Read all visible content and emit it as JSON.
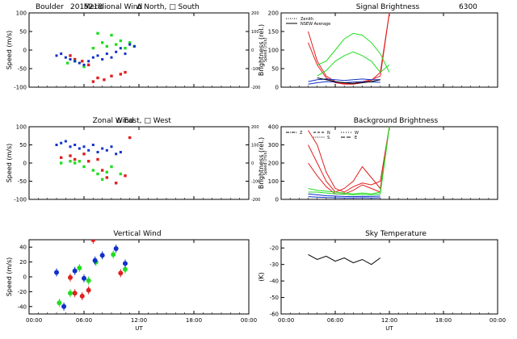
{
  "header": {
    "station": "Boulder",
    "date_code": "2015218",
    "wavelength": "6300"
  },
  "colors": {
    "red": "#e02020",
    "green": "#22dd22",
    "blue": "#1030c8",
    "black": "#000000"
  },
  "chart_data": [
    {
      "id": "meridional",
      "type": "scatter",
      "title": "Meridional Wind",
      "legend_text": "Δ North, □ South",
      "ylabel": "Speed (m/s)",
      "y2label": "Speed (m/s)",
      "xlim": [
        0,
        24
      ],
      "ylim": [
        -100,
        100
      ],
      "y2lim": [
        -200,
        200
      ],
      "xticks": [
        0,
        6,
        12,
        18,
        24
      ],
      "xtick_labels": [],
      "yticks": [
        -100,
        -50,
        0,
        50,
        100
      ],
      "ytick_labels": [
        "-100",
        "-50",
        "0",
        "50",
        "100"
      ],
      "y2ticks": [
        -200,
        -100,
        0,
        100,
        200
      ],
      "y2tick_labels": [
        "-200",
        "-100",
        "0",
        "100",
        "200"
      ],
      "series": [
        {
          "color": "red",
          "marker": "square",
          "x": [
            4.5,
            5.0,
            5.8,
            6.5,
            7.0,
            7.5,
            8.2,
            9.0,
            10.0,
            10.5
          ],
          "y": [
            -15,
            -25,
            -30,
            -40,
            -85,
            -75,
            -80,
            -70,
            -65,
            -60
          ]
        },
        {
          "color": "green",
          "marker": "square",
          "x": [
            4.2,
            5.0,
            6.0,
            7.0,
            7.5,
            8.0,
            8.5,
            9.0,
            9.5,
            10.0,
            10.5,
            11.0,
            11.5
          ],
          "y": [
            -35,
            -30,
            -45,
            5,
            45,
            20,
            10,
            40,
            15,
            25,
            5,
            20,
            10
          ]
        },
        {
          "color": "blue",
          "marker": "square",
          "x": [
            3.0,
            3.5,
            4.0,
            4.5,
            5.0,
            5.5,
            6.0,
            6.5,
            7.0,
            7.5,
            8.0,
            8.5,
            9.0,
            9.5,
            10.0,
            10.5,
            11.0,
            11.5
          ],
          "y": [
            -15,
            -10,
            -20,
            -25,
            -30,
            -35,
            -40,
            -30,
            -20,
            -15,
            -25,
            -10,
            -20,
            -5,
            5,
            -10,
            15,
            10
          ]
        }
      ]
    },
    {
      "id": "signal",
      "type": "line",
      "title": "Signal Brightness",
      "ylabel": "Brightness (rel.)",
      "xlim": [
        0,
        24
      ],
      "ylim": [
        0,
        200
      ],
      "xticks": [
        0,
        6,
        12,
        18,
        24
      ],
      "xtick_labels": [],
      "yticks": [
        0,
        50,
        100,
        150,
        200
      ],
      "ytick_labels": [
        "0",
        "50",
        "100",
        "150",
        "200"
      ],
      "legend": [
        "Zenith",
        "NSEW Average"
      ],
      "series": [
        {
          "color": "red",
          "x": [
            3,
            4,
            5,
            6,
            7,
            8,
            9,
            10,
            11,
            12
          ],
          "y": [
            150,
            70,
            30,
            15,
            10,
            10,
            15,
            20,
            30,
            200
          ]
        },
        {
          "color": "red",
          "x": [
            3,
            4,
            5,
            6,
            7,
            8,
            9,
            10,
            11,
            12
          ],
          "y": [
            120,
            60,
            25,
            12,
            8,
            8,
            12,
            18,
            40,
            200
          ]
        },
        {
          "color": "green",
          "x": [
            4,
            5,
            6,
            7,
            8,
            9,
            10,
            11,
            12
          ],
          "y": [
            60,
            70,
            100,
            130,
            145,
            140,
            120,
            90,
            40
          ]
        },
        {
          "color": "green",
          "x": [
            4,
            5,
            6,
            7,
            8,
            9,
            10,
            11,
            12
          ],
          "y": [
            30,
            45,
            70,
            85,
            95,
            85,
            70,
            40,
            60
          ]
        },
        {
          "color": "blue",
          "x": [
            3,
            4,
            5,
            6,
            7,
            8,
            9,
            10,
            11
          ],
          "y": [
            15,
            20,
            22,
            20,
            18,
            20,
            22,
            20,
            20
          ]
        },
        {
          "color": "blue",
          "x": [
            3,
            4,
            5,
            6,
            7,
            8,
            9,
            10,
            11
          ],
          "y": [
            8,
            12,
            15,
            14,
            12,
            14,
            15,
            14,
            13
          ]
        },
        {
          "color": "black",
          "x": [
            4,
            5,
            6,
            7,
            8,
            9,
            10,
            11
          ],
          "y": [
            25,
            20,
            15,
            12,
            10,
            12,
            15,
            20
          ]
        }
      ]
    },
    {
      "id": "zonal",
      "type": "scatter",
      "title": "Zonal Wind",
      "legend_text": "Δ East, □ West",
      "ylabel": "Speed (m/s)",
      "y2label": "Speed (m/s)",
      "xlim": [
        0,
        24
      ],
      "ylim": [
        -100,
        100
      ],
      "y2lim": [
        -200,
        200
      ],
      "xticks": [
        0,
        6,
        12,
        18,
        24
      ],
      "xtick_labels": [],
      "yticks": [
        -100,
        -50,
        0,
        50,
        100
      ],
      "ytick_labels": [
        "-100",
        "-50",
        "0",
        "50",
        "100"
      ],
      "y2ticks": [
        -200,
        -100,
        0,
        100,
        200
      ],
      "y2tick_labels": [
        "-200",
        "-100",
        "0",
        "100",
        "200"
      ],
      "series": [
        {
          "color": "red",
          "x": [
            3.5,
            4.5,
            5.0,
            6.0,
            6.5,
            7.5,
            8.0,
            8.5,
            9.5,
            10.5,
            11.0
          ],
          "y": [
            15,
            20,
            10,
            25,
            5,
            10,
            -20,
            -40,
            -55,
            -35,
            70
          ]
        },
        {
          "color": "green",
          "x": [
            3.5,
            4.5,
            5.0,
            5.5,
            6.0,
            7.0,
            7.5,
            8.0,
            8.5,
            9.0,
            10.0
          ],
          "y": [
            0,
            5,
            0,
            5,
            -10,
            -20,
            -30,
            -45,
            -25,
            -10,
            -30
          ]
        },
        {
          "color": "blue",
          "x": [
            3.0,
            3.5,
            4.0,
            4.5,
            5.0,
            5.5,
            6.0,
            6.5,
            7.0,
            7.5,
            8.0,
            8.5,
            9.0,
            9.5,
            10.0
          ],
          "y": [
            50,
            55,
            60,
            45,
            50,
            40,
            45,
            35,
            50,
            30,
            40,
            35,
            45,
            25,
            30
          ]
        }
      ]
    },
    {
      "id": "background",
      "type": "line",
      "title": "Background Brightness",
      "ylabel": "Brightness (rel.)",
      "xlim": [
        0,
        24
      ],
      "ylim": [
        0,
        400
      ],
      "xticks": [
        0,
        6,
        12,
        18,
        24
      ],
      "xtick_labels": [],
      "yticks": [
        0,
        100,
        200,
        300,
        400
      ],
      "ytick_labels": [
        "0",
        "100",
        "200",
        "300",
        "400"
      ],
      "legend": [
        "Z",
        "N",
        "S",
        "W",
        "E"
      ],
      "series": [
        {
          "color": "red",
          "x": [
            3,
            4,
            5,
            6,
            7,
            8,
            9,
            10,
            11,
            12
          ],
          "y": [
            380,
            300,
            150,
            60,
            40,
            70,
            90,
            80,
            100,
            400
          ]
        },
        {
          "color": "red",
          "x": [
            3,
            4,
            5,
            6,
            7,
            8,
            9,
            10,
            11,
            12
          ],
          "y": [
            300,
            200,
            100,
            40,
            60,
            100,
            180,
            120,
            60,
            400
          ]
        },
        {
          "color": "red",
          "x": [
            3,
            4,
            5,
            6,
            7,
            8,
            9,
            10,
            11,
            12
          ],
          "y": [
            200,
            130,
            70,
            30,
            30,
            50,
            80,
            60,
            40,
            400
          ]
        },
        {
          "color": "green",
          "x": [
            3,
            4,
            5,
            6,
            7,
            8,
            9,
            10,
            11,
            12
          ],
          "y": [
            60,
            50,
            45,
            40,
            35,
            30,
            35,
            30,
            40,
            400
          ]
        },
        {
          "color": "green",
          "x": [
            3,
            4,
            5,
            6,
            7,
            8,
            9,
            10,
            11,
            12
          ],
          "y": [
            40,
            40,
            35,
            30,
            28,
            25,
            28,
            25,
            30,
            400
          ]
        },
        {
          "color": "blue",
          "x": [
            3,
            4,
            5,
            6,
            7,
            8,
            9,
            10,
            11
          ],
          "y": [
            30,
            25,
            20,
            18,
            16,
            15,
            17,
            16,
            18
          ]
        },
        {
          "color": "blue",
          "x": [
            3,
            4,
            5,
            6,
            7,
            8,
            9,
            10,
            11
          ],
          "y": [
            15,
            12,
            10,
            9,
            8,
            8,
            9,
            8,
            9
          ]
        }
      ]
    },
    {
      "id": "vertical",
      "type": "scatter",
      "title": "Vertical Wind",
      "ylabel": "Speed (m/s)",
      "xlabel": "UT",
      "xlim": [
        0,
        24
      ],
      "ylim": [
        -50,
        50
      ],
      "xticks": [
        0,
        6,
        12,
        18,
        24
      ],
      "xtick_labels": [
        "00:00",
        "06:00",
        "12:00",
        "18:00",
        "00:00"
      ],
      "yticks": [
        -40,
        -20,
        0,
        20,
        40
      ],
      "ytick_labels": [
        "-40",
        "-20",
        "0",
        "20",
        "40"
      ],
      "series": [
        {
          "color": "red",
          "x": [
            4.5,
            5.0,
            5.8,
            6.5,
            7.0,
            10.0
          ],
          "y": [
            -1,
            -22,
            -26,
            -18,
            50,
            5
          ]
        },
        {
          "color": "green",
          "x": [
            3.3,
            4.5,
            5.5,
            6.5,
            7.3,
            9.2,
            10.5
          ],
          "y": [
            -35,
            -22,
            12,
            -5,
            20,
            30,
            10
          ]
        },
        {
          "color": "blue",
          "x": [
            3.0,
            3.8,
            5.0,
            6.0,
            7.2,
            8.0,
            9.5,
            10.5
          ],
          "y": [
            6,
            -40,
            8,
            -2,
            22,
            29,
            38,
            18
          ]
        }
      ]
    },
    {
      "id": "sky",
      "type": "line",
      "title": "Sky Temperature",
      "ylabel": "(K)",
      "xlabel": "UT",
      "xlim": [
        0,
        24
      ],
      "ylim": [
        -60,
        -15
      ],
      "xticks": [
        0,
        6,
        12,
        18,
        24
      ],
      "xtick_labels": [
        "00:00",
        "06:00",
        "12:00",
        "18:00",
        "00:00"
      ],
      "yticks": [
        -60,
        -50,
        -40,
        -30,
        -20
      ],
      "ytick_labels": [
        "-60",
        "-50",
        "-40",
        "-30",
        "-20"
      ],
      "series": [
        {
          "color": "black",
          "x": [
            3.0,
            4.0,
            5.0,
            6.0,
            7.0,
            8.0,
            9.0,
            10.0,
            11.0
          ],
          "y": [
            -24,
            -27,
            -25,
            -28,
            -26,
            -29,
            -27,
            -30,
            -26
          ]
        }
      ]
    }
  ]
}
